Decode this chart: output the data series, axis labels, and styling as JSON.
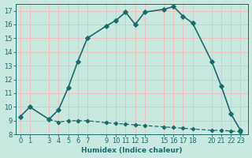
{
  "xlabel": "Humidex (Indice chaleur)",
  "bg_color": "#c8e8e0",
  "grid_color": "#f0c0c0",
  "line_color": "#1a6b6b",
  "curve1_x": [
    0,
    1,
    3,
    4,
    5,
    6,
    7,
    9,
    10,
    11,
    12,
    13,
    15,
    16,
    17,
    18,
    20,
    21,
    22,
    23
  ],
  "curve1_y": [
    9.3,
    10.0,
    9.1,
    9.8,
    11.4,
    13.3,
    15.0,
    15.9,
    16.3,
    16.9,
    16.0,
    16.9,
    17.1,
    17.3,
    16.6,
    16.1,
    13.3,
    11.5,
    9.5,
    8.3
  ],
  "curve2_x": [
    3,
    4,
    5,
    6,
    7,
    9,
    10,
    11,
    12,
    13,
    15,
    16,
    17,
    18,
    20,
    21,
    22,
    23
  ],
  "curve2_y": [
    9.1,
    8.9,
    9.0,
    9.0,
    9.0,
    8.85,
    8.8,
    8.75,
    8.7,
    8.65,
    8.55,
    8.5,
    8.45,
    8.4,
    8.3,
    8.3,
    8.25,
    8.2
  ],
  "ylim": [
    8,
    17.5
  ],
  "yticks": [
    8,
    9,
    10,
    11,
    12,
    13,
    14,
    15,
    16,
    17
  ],
  "xlim": [
    -0.5,
    23.8
  ],
  "xticks": [
    0,
    1,
    3,
    4,
    5,
    6,
    7,
    9,
    10,
    11,
    12,
    13,
    15,
    16,
    17,
    18,
    20,
    21,
    22,
    23
  ]
}
